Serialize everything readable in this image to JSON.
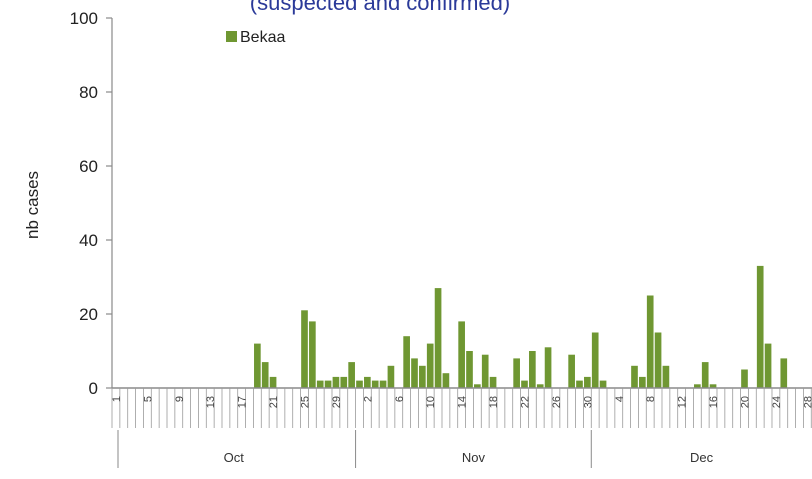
{
  "chart_data": {
    "type": "bar",
    "title": "(suspected and confirmed)",
    "ylabel": "nb cases",
    "ylim": [
      0,
      100
    ],
    "yticks": [
      0,
      20,
      40,
      60,
      80,
      100
    ],
    "grid": false,
    "legend": {
      "position": "top-left",
      "entries": [
        "Bekaa"
      ]
    },
    "colors": {
      "bar": "#6f9732",
      "axis": "#8a8a8a",
      "title": "#2b3a99"
    },
    "months": [
      {
        "name": "Oct",
        "start_day": 1,
        "days": 31
      },
      {
        "name": "Nov",
        "start_day": 1,
        "days": 30
      },
      {
        "name": "Dec",
        "start_day": 1,
        "days": 29
      }
    ],
    "date_tick_labels": [
      "1",
      "5",
      "9",
      "13",
      "17",
      "21",
      "25",
      "29",
      "2",
      "6",
      "10",
      "14",
      "18",
      "22",
      "26",
      "30",
      "4",
      "8",
      "12",
      "16",
      "20",
      "24",
      "28"
    ],
    "series": [
      {
        "name": "Bekaa",
        "values": [
          0,
          0,
          0,
          0,
          0,
          0,
          0,
          0,
          0,
          0,
          0,
          0,
          0,
          0,
          0,
          0,
          0,
          0,
          12,
          7,
          3,
          0,
          0,
          0,
          21,
          18,
          2,
          2,
          3,
          3,
          7,
          2,
          3,
          2,
          2,
          6,
          0,
          14,
          8,
          6,
          12,
          27,
          4,
          0,
          18,
          10,
          1,
          9,
          3,
          0,
          0,
          8,
          2,
          10,
          1,
          11,
          0,
          0,
          9,
          2,
          3,
          15,
          2,
          0,
          0,
          0,
          6,
          3,
          25,
          15,
          6,
          0,
          0,
          0,
          1,
          7,
          1,
          0,
          0,
          0,
          5,
          0,
          33,
          12,
          0,
          8,
          0,
          0,
          0
        ]
      }
    ]
  }
}
